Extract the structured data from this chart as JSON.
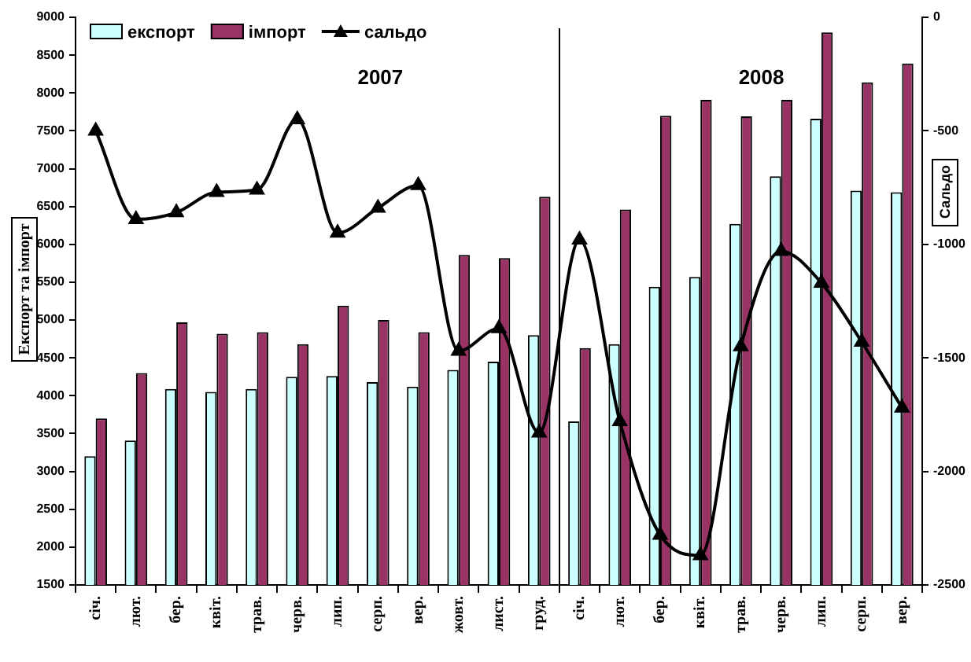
{
  "chart_data": {
    "type": "bar",
    "ylabel": "Експорт та імпорт",
    "y2label": "Сальдо",
    "annotations": [
      "2007",
      "2008"
    ],
    "categories": [
      "січ.",
      "лют.",
      "бер.",
      "квіт.",
      "трав.",
      "черв.",
      "лип.",
      "серп.",
      "вер.",
      "жовт.",
      "лист.",
      "груд.",
      "січ.",
      "лют.",
      "бер.",
      "квіт.",
      "трав.",
      "черв.",
      "лип.",
      "серп.",
      "вер."
    ],
    "series": [
      {
        "name": "експорт",
        "color": "#ccffff",
        "values": [
          3200,
          3410,
          4090,
          4050,
          4090,
          4250,
          4260,
          4180,
          4120,
          4340,
          4450,
          4800,
          3660,
          4680,
          5440,
          5570,
          6270,
          6900,
          7660,
          6710,
          6690
        ]
      },
      {
        "name": "імпорт",
        "color": "#993366",
        "values": [
          3700,
          4300,
          4970,
          4820,
          4840,
          4680,
          5190,
          5000,
          4840,
          5860,
          5820,
          6630,
          4630,
          6460,
          7700,
          7910,
          7690,
          7910,
          8800,
          8140,
          8390
        ]
      },
      {
        "name": "сальдо",
        "type": "line",
        "axis": "y2",
        "color": "#000000",
        "marker": "triangle",
        "values": [
          -500,
          -890,
          -860,
          -770,
          -760,
          -450,
          -950,
          -840,
          -740,
          -1470,
          -1370,
          -1830,
          -980,
          -1780,
          -2280,
          -2370,
          -1450,
          -1030,
          -1170,
          -1430,
          -1720
        ]
      }
    ],
    "ylim": [
      1500,
      9000
    ],
    "yticks": [
      1500,
      2000,
      2500,
      3000,
      3500,
      4000,
      4500,
      5000,
      5500,
      6000,
      6500,
      7000,
      7500,
      8000,
      8500,
      9000
    ],
    "y2lim": [
      -2500,
      0
    ],
    "y2ticks": [
      -2500,
      -2000,
      -1500,
      -1000,
      -500,
      0
    ],
    "legend": "top left"
  }
}
